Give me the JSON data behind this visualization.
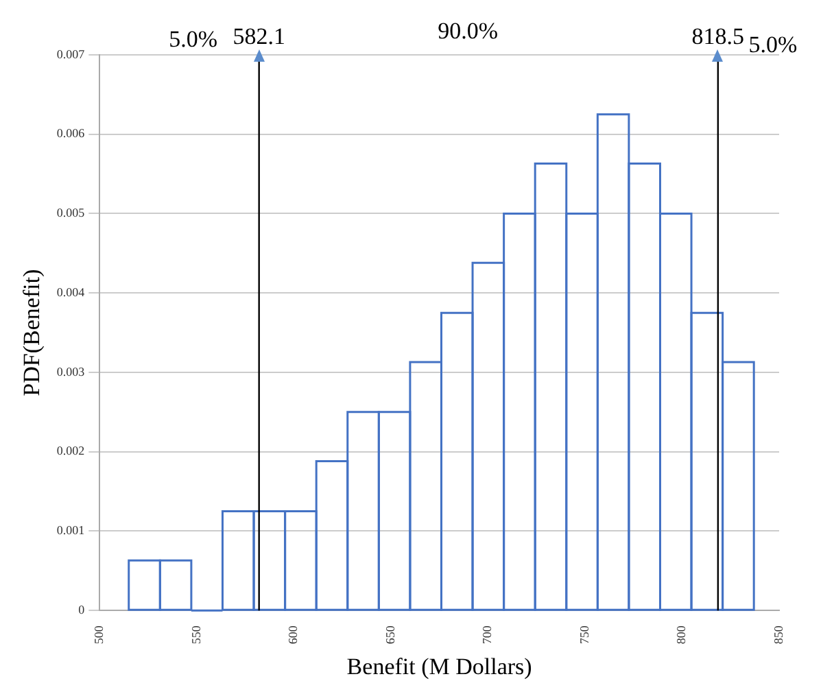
{
  "chart_data": {
    "type": "histogram",
    "xlabel": "Benefit (M Dollars)",
    "ylabel": "PDF(Benefit)",
    "bins": [
      515,
      531.1,
      547.2,
      563.3,
      579.4,
      595.5,
      611.6,
      627.7,
      643.8,
      659.9,
      676,
      692.1,
      708.2,
      724.3,
      740.4,
      756.5,
      772.6,
      788.7,
      804.8,
      820.9,
      837
    ],
    "values": [
      0.00063,
      0.00063,
      0,
      0.00125,
      0.00125,
      0.00125,
      0.00188,
      0.0025,
      0.0025,
      0.00313,
      0.00375,
      0.00438,
      0.005,
      0.00563,
      0.005,
      0.00625,
      0.00563,
      0.005,
      0.00375,
      0.00313
    ],
    "color": "#4472c4",
    "xlim": [
      500,
      850
    ],
    "xticks": [
      500,
      550,
      600,
      650,
      700,
      750,
      800,
      850
    ],
    "ylim": [
      0,
      0.007
    ],
    "yticks": [
      0,
      0.001,
      0.002,
      0.003,
      0.004,
      0.005,
      0.006,
      0.007
    ],
    "grid": "y",
    "legend": false,
    "ref_lines": [
      {
        "axis": "x",
        "value": 582.1,
        "label": "582.1",
        "color": "#000000"
      },
      {
        "axis": "x",
        "value": 818.5,
        "label": "818.5",
        "color": "#000000"
      }
    ],
    "annotations": [
      "5.0%",
      "90.0%",
      "5.0%"
    ]
  }
}
